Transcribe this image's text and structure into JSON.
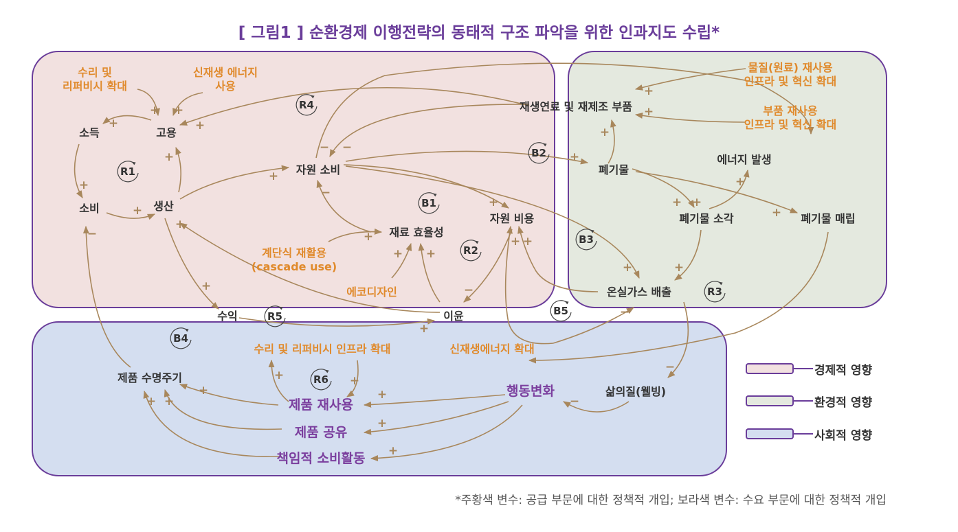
{
  "title": "[ 그림1 ] 순환경제 이행전략의 동태적 구조 파악을 위한 인과지도 수립*",
  "footnote": "*주황색 변수: 공급 부문에 대한 정책적 개입; 보라색 변수: 수요 부문에 대한 정책적 개입",
  "colors": {
    "economic_fill": "#f2e1e0",
    "environment_fill": "#e4e9df",
    "social_fill": "#d4def0",
    "border": "#6a3d9a",
    "arrow": "#a8875c",
    "supply_text": "#e08a2c",
    "demand_text": "#7b3f9e",
    "variable_text": "#333333"
  },
  "legend": [
    {
      "label": "경제적 영향",
      "color": "#f2e1e0"
    },
    {
      "label": "환경적 영향",
      "color": "#e4e9df"
    },
    {
      "label": "사회적 영향",
      "color": "#d4def0"
    }
  ],
  "variables": [
    {
      "id": "repair_expand",
      "lines": [
        "수리 및",
        "리퍼비시 확대"
      ],
      "type": "supply"
    },
    {
      "id": "renew_use",
      "lines": [
        "신재생 에너지",
        "사용"
      ],
      "type": "supply"
    },
    {
      "id": "income",
      "lines": [
        "소득"
      ],
      "type": "normal"
    },
    {
      "id": "employment",
      "lines": [
        "고용"
      ],
      "type": "normal"
    },
    {
      "id": "consumption",
      "lines": [
        "소비"
      ],
      "type": "normal"
    },
    {
      "id": "production",
      "lines": [
        "생산"
      ],
      "type": "normal"
    },
    {
      "id": "resource_use",
      "lines": [
        "자원 소비"
      ],
      "type": "normal"
    },
    {
      "id": "material_eff",
      "lines": [
        "재료 효율성"
      ],
      "type": "normal"
    },
    {
      "id": "resource_cost",
      "lines": [
        "자원 비용"
      ],
      "type": "normal"
    },
    {
      "id": "cascade",
      "lines": [
        "계단식 재활용",
        "(cascade use)"
      ],
      "type": "supply"
    },
    {
      "id": "ecodesign",
      "lines": [
        "에코디자인"
      ],
      "type": "supply"
    },
    {
      "id": "revenue",
      "lines": [
        "수익"
      ],
      "type": "normal"
    },
    {
      "id": "profit",
      "lines": [
        "이윤"
      ],
      "type": "normal"
    },
    {
      "id": "reman",
      "lines": [
        "재생연료 및 재제조 부품"
      ],
      "type": "normal"
    },
    {
      "id": "mat_reuse_infra",
      "lines": [
        "물질(원료) 재사용",
        "인프라 및 혁신 확대"
      ],
      "type": "supply"
    },
    {
      "id": "part_reuse_infra",
      "lines": [
        "부품 재사용",
        "인프라 및 혁신 확대"
      ],
      "type": "supply"
    },
    {
      "id": "waste",
      "lines": [
        "폐기물"
      ],
      "type": "normal"
    },
    {
      "id": "energy_gen",
      "lines": [
        "에너지 발생"
      ],
      "type": "normal"
    },
    {
      "id": "incineration",
      "lines": [
        "폐기물 소각"
      ],
      "type": "normal"
    },
    {
      "id": "landfill",
      "lines": [
        "폐기물 매립"
      ],
      "type": "normal"
    },
    {
      "id": "ghg",
      "lines": [
        "온실가스 배출"
      ],
      "type": "normal"
    },
    {
      "id": "renew_expand",
      "lines": [
        "신재생에너지 확대"
      ],
      "type": "supply"
    },
    {
      "id": "repair_infra",
      "lines": [
        "수리 및 리퍼비시 인프라 확대"
      ],
      "type": "supply"
    },
    {
      "id": "lifespan",
      "lines": [
        "제품 수명주기"
      ],
      "type": "normal"
    },
    {
      "id": "behavior",
      "lines": [
        "행동변화"
      ],
      "type": "demand"
    },
    {
      "id": "wellbeing",
      "lines": [
        "삶의질(웰빙)"
      ],
      "type": "normal"
    },
    {
      "id": "product_reuse",
      "lines": [
        "제품 재사용"
      ],
      "type": "demand"
    },
    {
      "id": "product_share",
      "lines": [
        "제품 공유"
      ],
      "type": "demand"
    },
    {
      "id": "resp_consume",
      "lines": [
        "책임적 소비활동"
      ],
      "type": "demand"
    }
  ],
  "loops": [
    "R4",
    "R1",
    "B2",
    "B1",
    "R2",
    "B3",
    "R3",
    "R5",
    "B5",
    "B4",
    "R6"
  ],
  "link_signs": {
    "plus": "+",
    "minus": "−"
  }
}
